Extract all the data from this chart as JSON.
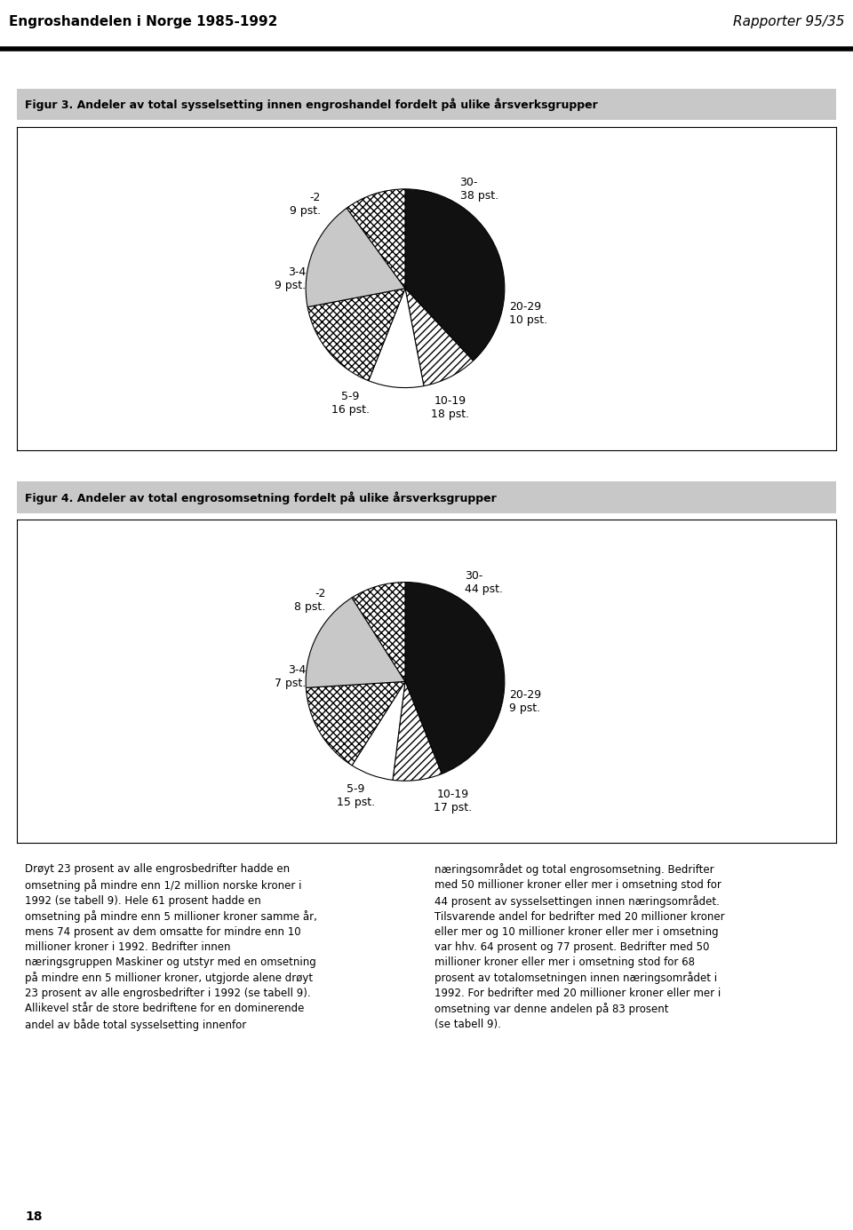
{
  "header_left": "Engroshandelen i Norge 1985-1992",
  "header_right": "Rapporter 95/35",
  "fig3_title": "Figur 3. Andeler av total sysselsetting innen engroshandel fordelt på ulike årsverksgrupper",
  "fig4_title": "Figur 4. Andeler av total engrosomsetning fordelt på ulike årsverksgrupper",
  "chart1": {
    "slices": [
      38,
      9,
      9,
      16,
      18,
      10
    ],
    "labels": [
      "30-\n38 pst.",
      "-2\n9 pst.",
      "3-4\n9 pst.",
      "5-9\n16 pst.",
      "10-19\n18 pst.",
      "20-29\n10 pst."
    ],
    "hatches": [
      "black_fill",
      "diagonal_lines",
      "white",
      "crosshatch",
      "light_gray",
      "crosshatch2"
    ],
    "colors": [
      "#1a1a1a",
      "#ffffff",
      "#ffffff",
      "#ffffff",
      "#d0d0d0",
      "#ffffff"
    ],
    "hatch_patterns": [
      "",
      "////",
      "",
      "xxxx",
      "",
      "xxxx"
    ],
    "edgecolors": [
      "#1a1a1a",
      "#1a1a1a",
      "#1a1a1a",
      "#1a1a1a",
      "#1a1a1a",
      "#1a1a1a"
    ]
  },
  "chart2": {
    "slices": [
      44,
      8,
      7,
      15,
      17,
      9
    ],
    "labels": [
      "30-\n44 pst.",
      "-2\n8 pst.",
      "3-4\n7 pst.",
      "5-9\n15 pst.",
      "10-19\n17 pst.",
      "20-29\n9 pst."
    ],
    "hatches": [
      "black_fill",
      "diagonal_lines",
      "white",
      "crosshatch",
      "light_gray",
      "crosshatch2"
    ],
    "colors": [
      "#1a1a1a",
      "#ffffff",
      "#ffffff",
      "#ffffff",
      "#d0d0d0",
      "#ffffff"
    ],
    "hatch_patterns": [
      "",
      "////",
      "",
      "xxxx",
      "",
      "xxxx"
    ],
    "edgecolors": [
      "#1a1a1a",
      "#1a1a1a",
      "#1a1a1a",
      "#1a1a1a",
      "#1a1a1a",
      "#1a1a1a"
    ]
  },
  "body_text_left": "Drøyt 23 prosent av alle engrosbedrifter hadde en\nomsetning på mindre enn 1/2 million norske kroner i\n1992 (se tabell 9). Hele 61 prosent hadde en\nomsetning på mindre enn 5 millioner kroner samme år,\nmens 74 prosent av dem omsatte for mindre enn 10\nmillioner kroner i 1992. Bedrifter innen\nnæringsgruppen Maskiner og utstyr med en omsetning\npå mindre enn 5 millioner kroner, utgjorde alene drøyt\n23 prosent av alle engrosbedrifter i 1992 (se tabell 9).\nAllikevel står de store bedriftene for en dominerende\nandel av både total sysselsetting innenfor",
  "body_text_right": "næringsområdet og total engrosomsetning. Bedrifter\nmed 50 millioner kroner eller mer i omsetning stod for\n44 prosent av sysselsettingen innen næringsområdet.\nTilsvarende andel for bedrifter med 20 millioner kroner\neller mer og 10 millioner kroner eller mer i omsetning\nvar hhv. 64 prosent og 77 prosent. Bedrifter med 50\nmillioner kroner eller mer i omsetning stod for 68\nprosent av totalomsetningen innen næringsområdet i\n1992. For bedrifter med 20 millioner kroner eller mer i\nomsetning var denne andelen på 83 prosent\n(se tabell 9).",
  "page_number": "18"
}
